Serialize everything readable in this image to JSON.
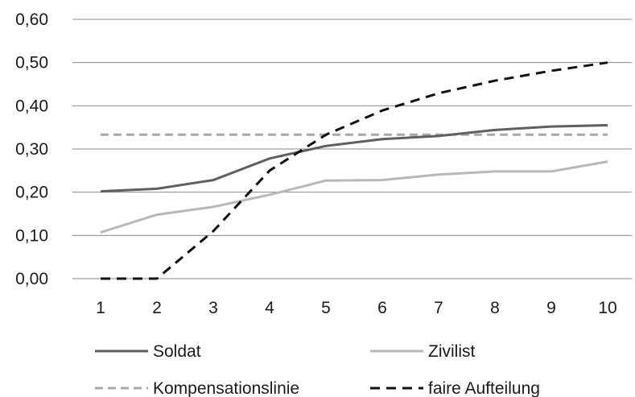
{
  "chart_data": {
    "type": "line",
    "categories": [
      "1",
      "2",
      "3",
      "4",
      "5",
      "6",
      "7",
      "8",
      "9",
      "10"
    ],
    "ylim": [
      0,
      0.6
    ],
    "yticks": [
      "0,00",
      "0,10",
      "0,20",
      "0,30",
      "0,40",
      "0,50",
      "0,60"
    ],
    "grid": true,
    "legend_position": "bottom",
    "series": [
      {
        "name": "Soldat",
        "color": "#5f5f5f",
        "style": "solid",
        "values": [
          0.202,
          0.208,
          0.228,
          0.278,
          0.307,
          0.323,
          0.33,
          0.344,
          0.352,
          0.355
        ]
      },
      {
        "name": "Zivilist",
        "color": "#b8b8b8",
        "style": "solid",
        "values": [
          0.107,
          0.148,
          0.166,
          0.194,
          0.227,
          0.228,
          0.241,
          0.248,
          0.248,
          0.271
        ]
      },
      {
        "name": "Kompensationslinie",
        "color": "#a8a8a8",
        "style": "dashed",
        "values": [
          0.333,
          0.333,
          0.333,
          0.333,
          0.333,
          0.333,
          0.333,
          0.333,
          0.333,
          0.333
        ]
      },
      {
        "name": "faire Aufteilung",
        "color": "#111111",
        "style": "dashed",
        "values": [
          0.0,
          0.0,
          0.11,
          0.25,
          0.333,
          0.389,
          0.429,
          0.458,
          0.481,
          0.5
        ]
      }
    ]
  }
}
